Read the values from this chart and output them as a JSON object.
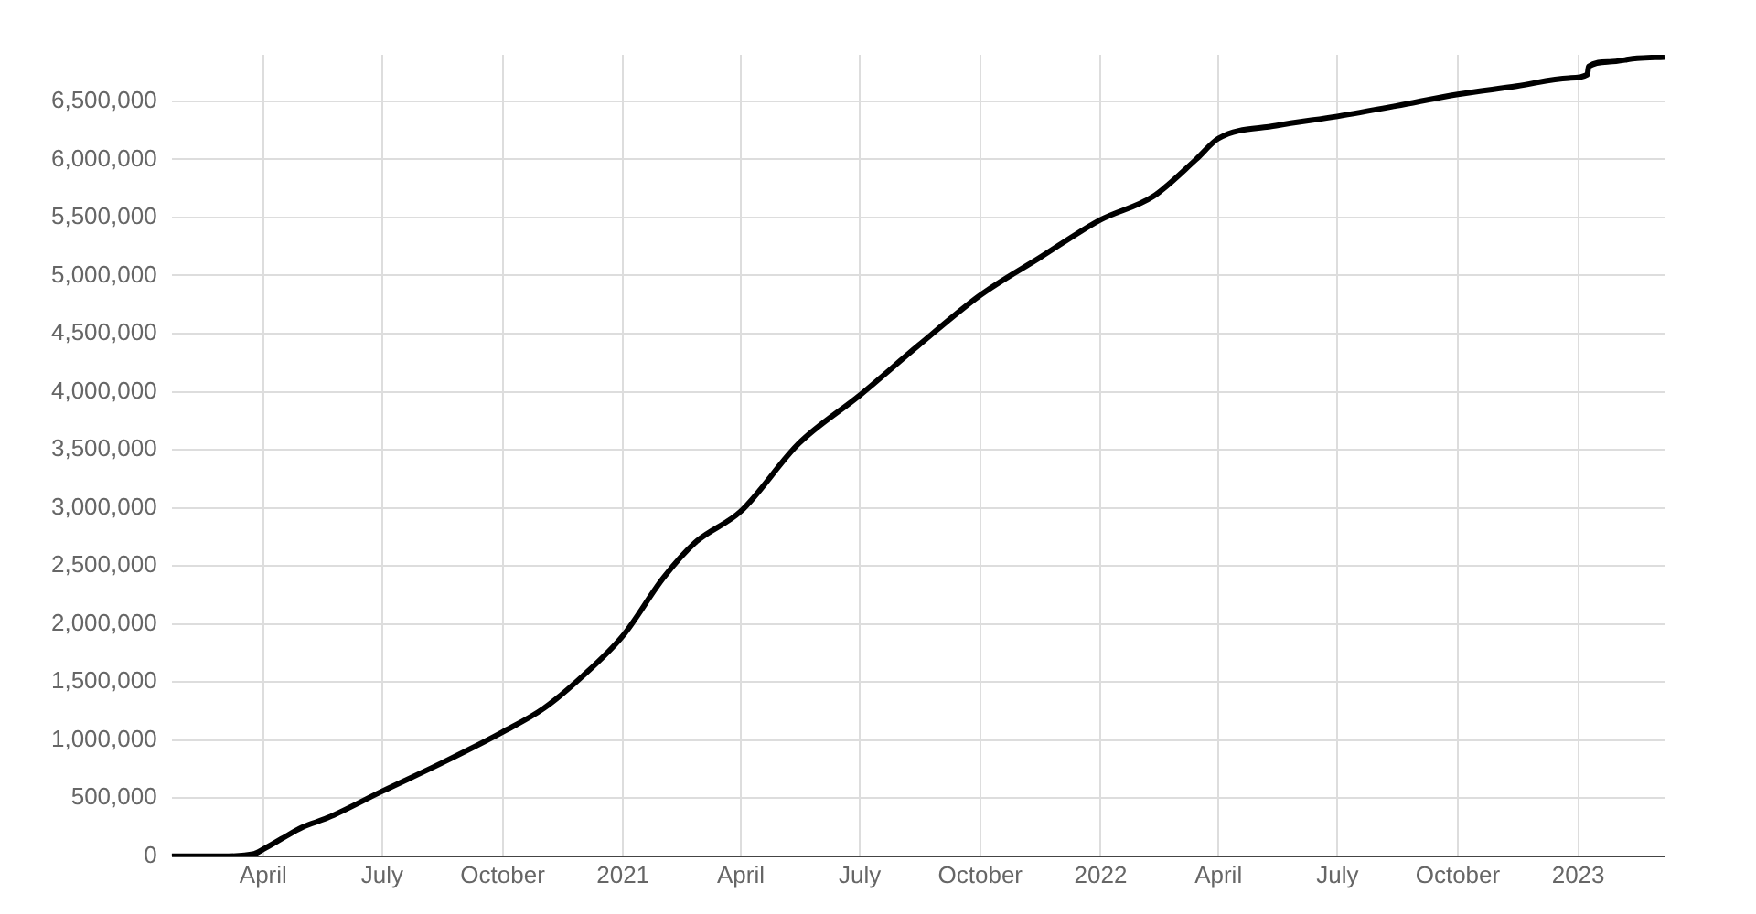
{
  "chart_data": {
    "type": "line",
    "x": [
      "2020-01-22",
      "2020-03-01",
      "2020-03-25",
      "2020-04-01",
      "2020-04-15",
      "2020-05-01",
      "2020-05-20",
      "2020-07-01",
      "2020-08-15",
      "2020-10-01",
      "2020-11-01",
      "2020-12-01",
      "2021-01-01",
      "2021-02-01",
      "2021-02-25",
      "2021-04-01",
      "2021-05-15",
      "2021-07-01",
      "2021-08-15",
      "2021-10-01",
      "2021-11-15",
      "2022-01-01",
      "2022-02-10",
      "2022-03-15",
      "2022-04-01",
      "2022-05-15",
      "2022-07-01",
      "2022-08-15",
      "2022-10-01",
      "2022-11-15",
      "2022-12-25",
      "2023-01-08",
      "2023-01-09",
      "2023-01-25",
      "2023-02-15",
      "2023-03-08"
    ],
    "series": [
      {
        "color": "#000000",
        "values": [
          0,
          0,
          20000,
          60000,
          150000,
          250000,
          330000,
          560000,
          800000,
          1070000,
          1270000,
          1550000,
          1900000,
          2400000,
          2700000,
          2970000,
          3550000,
          3970000,
          4400000,
          4830000,
          5150000,
          5480000,
          5680000,
          6000000,
          6180000,
          6290000,
          6370000,
          6460000,
          6560000,
          6630000,
          6700000,
          6730000,
          6800000,
          6840000,
          6870000,
          6880000
        ]
      }
    ],
    "xlim": [
      "2020-01-22",
      "2023-03-08"
    ],
    "xticks": [
      {
        "value": "2020-04-01",
        "label": "April"
      },
      {
        "value": "2020-07-01",
        "label": "July"
      },
      {
        "value": "2020-10-01",
        "label": "October"
      },
      {
        "value": "2021-01-01",
        "label": "2021"
      },
      {
        "value": "2021-04-01",
        "label": "April"
      },
      {
        "value": "2021-07-01",
        "label": "July"
      },
      {
        "value": "2021-10-01",
        "label": "October"
      },
      {
        "value": "2022-01-01",
        "label": "2022"
      },
      {
        "value": "2022-04-01",
        "label": "April"
      },
      {
        "value": "2022-07-01",
        "label": "July"
      },
      {
        "value": "2022-10-01",
        "label": "October"
      },
      {
        "value": "2023-01-01",
        "label": "2023"
      }
    ],
    "ylim": [
      0,
      6900000
    ],
    "yticks": [
      {
        "value": 0,
        "label": "0"
      },
      {
        "value": 500000,
        "label": "500,000"
      },
      {
        "value": 1000000,
        "label": "1,000,000"
      },
      {
        "value": 1500000,
        "label": "1,500,000"
      },
      {
        "value": 2000000,
        "label": "2,000,000"
      },
      {
        "value": 2500000,
        "label": "2,500,000"
      },
      {
        "value": 3000000,
        "label": "3,000,000"
      },
      {
        "value": 3500000,
        "label": "3,500,000"
      },
      {
        "value": 4000000,
        "label": "4,000,000"
      },
      {
        "value": 4500000,
        "label": "4,500,000"
      },
      {
        "value": 5000000,
        "label": "5,000,000"
      },
      {
        "value": 5500000,
        "label": "5,500,000"
      },
      {
        "value": 6000000,
        "label": "6,000,000"
      },
      {
        "value": 6500000,
        "label": "6,500,000"
      }
    ],
    "grid": true,
    "legend": false,
    "marker": "none",
    "line_style": "solid"
  }
}
